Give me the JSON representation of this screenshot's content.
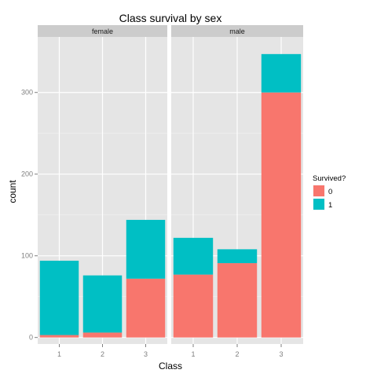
{
  "chart_data": {
    "type": "bar",
    "stacked": true,
    "title": "Class survival by sex",
    "xlabel": "Class",
    "ylabel": "count",
    "ylim": [
      -8,
      368
    ],
    "yticks": [
      0,
      100,
      200,
      300
    ],
    "categories": [
      "1",
      "2",
      "3"
    ],
    "facets": [
      {
        "name": "female",
        "series": [
          {
            "name": "0",
            "values": [
              3,
              6,
              72
            ]
          },
          {
            "name": "1",
            "values": [
              91,
              70,
              72
            ]
          }
        ]
      },
      {
        "name": "male",
        "series": [
          {
            "name": "0",
            "values": [
              77,
              91,
              300
            ]
          },
          {
            "name": "1",
            "values": [
              45,
              17,
              47
            ]
          }
        ]
      }
    ],
    "legend": {
      "title": "Survived?",
      "position": "right",
      "items": [
        {
          "label": "0",
          "color": "#F8766D"
        },
        {
          "label": "1",
          "color": "#00BFC4"
        }
      ]
    },
    "colors": {
      "panel": "#E5E5E5",
      "grid_major": "#FFFFFF",
      "grid_minor": "#F2F2F2",
      "strip": "#CCCCCC"
    },
    "grid": true
  }
}
